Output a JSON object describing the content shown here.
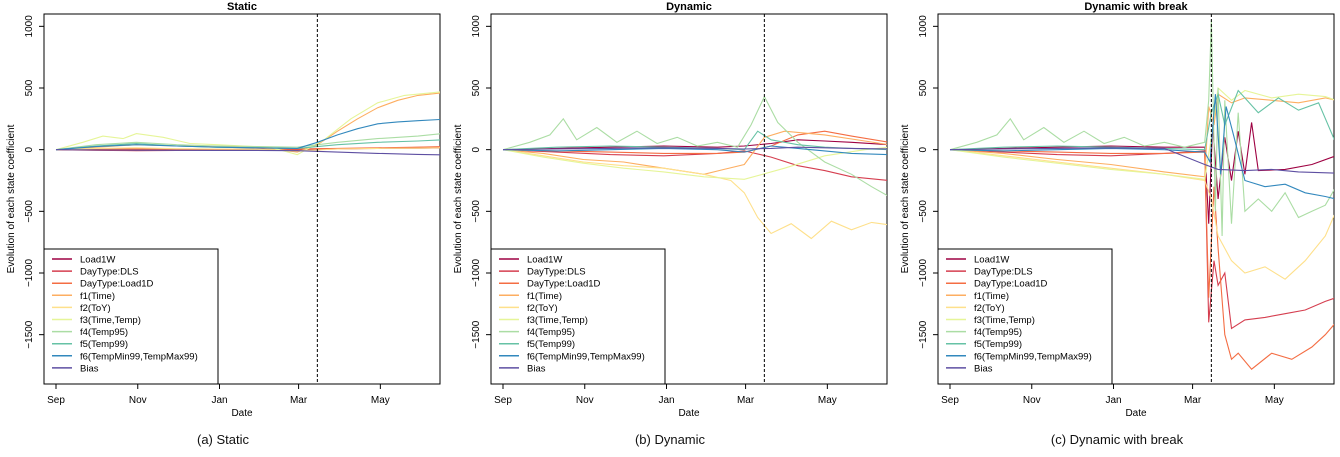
{
  "chart_data": [
    {
      "type": "line",
      "title": "Static",
      "caption": "(a) Static",
      "xlabel": "Date",
      "ylabel": "Evolution of each state coefficient",
      "x_ticks": [
        "Sep",
        "Nov",
        "Jan",
        "Mar",
        "May"
      ],
      "y_ticks": [
        "-1500",
        "-1000",
        "-500",
        "0",
        "500",
        "1000"
      ],
      "ylim": [
        -1900,
        1100
      ],
      "break_date": "Mar 15",
      "legend_position": "bottom-left",
      "series": [
        {
          "name": "Load1W",
          "color": "#9e0142",
          "x": [
            0,
            30,
            60,
            90,
            120,
            150,
            180,
            210,
            240,
            270,
            288
          ],
          "y": [
            0,
            2,
            3,
            4,
            2,
            3,
            5,
            8,
            10,
            12,
            14
          ]
        },
        {
          "name": "DayType:DLS",
          "color": "#d53e4f",
          "x": [
            0,
            30,
            60,
            90,
            120,
            150,
            180,
            210,
            240,
            270,
            288
          ],
          "y": [
            0,
            -5,
            -8,
            -6,
            -4,
            -3,
            -2,
            5,
            12,
            18,
            22
          ]
        },
        {
          "name": "DayType:Load1D",
          "color": "#f46d43",
          "x": [
            0,
            30,
            60,
            90,
            120,
            150,
            180,
            210,
            240,
            270,
            288
          ],
          "y": [
            0,
            3,
            5,
            4,
            2,
            3,
            5,
            10,
            15,
            20,
            25
          ]
        },
        {
          "name": "f1(Time)",
          "color": "#fdae61",
          "x": [
            0,
            30,
            60,
            90,
            120,
            150,
            180,
            195,
            210,
            225,
            240,
            255,
            270,
            288
          ],
          "y": [
            0,
            20,
            40,
            30,
            25,
            20,
            -20,
            40,
            150,
            250,
            340,
            400,
            440,
            460
          ]
        },
        {
          "name": "f2(ToY)",
          "color": "#fee08b",
          "x": [
            0,
            30,
            60,
            90,
            120,
            150,
            180,
            210,
            240,
            270,
            288
          ],
          "y": [
            0,
            10,
            15,
            8,
            5,
            3,
            -10,
            5,
            10,
            12,
            15
          ]
        },
        {
          "name": "f3(Time,Temp)",
          "color": "#e6f598",
          "x": [
            0,
            20,
            35,
            50,
            60,
            80,
            100,
            120,
            140,
            160,
            180,
            200,
            220,
            240,
            260,
            288
          ],
          "y": [
            0,
            60,
            110,
            90,
            130,
            100,
            50,
            40,
            30,
            20,
            -40,
            80,
            250,
            380,
            440,
            470
          ]
        },
        {
          "name": "f4(Temp95)",
          "color": "#abdda4",
          "x": [
            0,
            30,
            60,
            90,
            120,
            150,
            180,
            210,
            240,
            270,
            288
          ],
          "y": [
            0,
            40,
            60,
            40,
            30,
            25,
            20,
            60,
            90,
            110,
            130
          ]
        },
        {
          "name": "f5(Temp99)",
          "color": "#66c2a5",
          "x": [
            0,
            30,
            60,
            90,
            120,
            150,
            180,
            210,
            240,
            270,
            288
          ],
          "y": [
            0,
            30,
            50,
            30,
            20,
            15,
            10,
            40,
            60,
            70,
            80
          ]
        },
        {
          "name": "f6(TempMin99,TempMax99)",
          "color": "#3288bd",
          "x": [
            0,
            30,
            60,
            90,
            120,
            150,
            180,
            195,
            210,
            225,
            240,
            255,
            270,
            288
          ],
          "y": [
            0,
            25,
            40,
            30,
            20,
            15,
            10,
            60,
            120,
            170,
            210,
            225,
            235,
            245
          ]
        },
        {
          "name": "Bias",
          "color": "#5e4fa2",
          "x": [
            0,
            30,
            60,
            90,
            120,
            150,
            180,
            210,
            240,
            270,
            288
          ],
          "y": [
            0,
            -2,
            -4,
            -5,
            -6,
            -6,
            -8,
            -20,
            -30,
            -38,
            -42
          ]
        }
      ]
    },
    {
      "type": "line",
      "title": "Dynamic",
      "caption": "(b) Dynamic",
      "xlabel": "Date",
      "ylabel": "Evolution of each state coefficient",
      "x_ticks": [
        "Sep",
        "Nov",
        "Jan",
        "Mar",
        "May"
      ],
      "y_ticks": [
        "-1500",
        "-1000",
        "-500",
        "0",
        "500",
        "1000"
      ],
      "ylim": [
        -1900,
        1100
      ],
      "break_date": "Mar 15",
      "legend_position": "bottom-left",
      "series": [
        {
          "name": "Load1W",
          "color": "#9e0142",
          "x": [
            0,
            40,
            80,
            120,
            160,
            180,
            200,
            220,
            240,
            260,
            288
          ],
          "y": [
            0,
            10,
            20,
            30,
            20,
            30,
            50,
            80,
            70,
            60,
            40
          ]
        },
        {
          "name": "DayType:DLS",
          "color": "#d53e4f",
          "x": [
            0,
            40,
            80,
            120,
            160,
            180,
            200,
            220,
            240,
            260,
            288
          ],
          "y": [
            0,
            -20,
            -40,
            -50,
            -30,
            -10,
            -60,
            -130,
            -170,
            -220,
            -250
          ]
        },
        {
          "name": "DayType:Load1D",
          "color": "#f46d43",
          "x": [
            0,
            40,
            80,
            120,
            160,
            180,
            200,
            220,
            240,
            260,
            288
          ],
          "y": [
            0,
            -10,
            -20,
            -30,
            -30,
            -20,
            30,
            120,
            150,
            110,
            60
          ]
        },
        {
          "name": "f1(Time)",
          "color": "#fdae61",
          "x": [
            0,
            30,
            60,
            90,
            120,
            150,
            165,
            180,
            195,
            210,
            240,
            270,
            288
          ],
          "y": [
            0,
            -30,
            -80,
            -100,
            -150,
            -200,
            -160,
            -120,
            100,
            150,
            120,
            70,
            40
          ]
        },
        {
          "name": "f2(ToY)",
          "color": "#fee08b",
          "x": [
            0,
            30,
            60,
            90,
            120,
            150,
            170,
            180,
            190,
            200,
            215,
            230,
            245,
            260,
            275,
            288
          ],
          "y": [
            0,
            -50,
            -100,
            -130,
            -150,
            -200,
            -250,
            -350,
            -550,
            -680,
            -600,
            -720,
            -580,
            -650,
            -590,
            -610
          ]
        },
        {
          "name": "f3(Time,Temp)",
          "color": "#e6f598",
          "x": [
            0,
            30,
            60,
            90,
            120,
            150,
            180,
            210,
            240,
            270,
            288
          ],
          "y": [
            0,
            -60,
            -110,
            -150,
            -180,
            -220,
            -240,
            -150,
            -50,
            0,
            20
          ]
        },
        {
          "name": "f4(Temp95)",
          "color": "#abdda4",
          "x": [
            0,
            20,
            35,
            45,
            55,
            70,
            85,
            100,
            115,
            130,
            145,
            160,
            175,
            185,
            195,
            205,
            220,
            240,
            260,
            275,
            288
          ],
          "y": [
            0,
            60,
            120,
            250,
            80,
            180,
            60,
            150,
            50,
            100,
            30,
            60,
            20,
            200,
            430,
            220,
            60,
            -100,
            -200,
            -300,
            -380
          ]
        },
        {
          "name": "f5(Temp99)",
          "color": "#66c2a5",
          "x": [
            0,
            40,
            80,
            120,
            160,
            180,
            190,
            200,
            220,
            240,
            260,
            288
          ],
          "y": [
            0,
            20,
            30,
            20,
            10,
            0,
            150,
            80,
            40,
            20,
            10,
            0
          ]
        },
        {
          "name": "f6(TempMin99,TempMax99)",
          "color": "#3288bd",
          "x": [
            0,
            40,
            80,
            120,
            160,
            180,
            200,
            220,
            240,
            260,
            288
          ],
          "y": [
            0,
            -10,
            0,
            10,
            0,
            -20,
            30,
            10,
            -10,
            -30,
            -40
          ]
        },
        {
          "name": "Bias",
          "color": "#5e4fa2",
          "x": [
            0,
            40,
            80,
            120,
            160,
            180,
            200,
            220,
            240,
            260,
            288
          ],
          "y": [
            0,
            5,
            10,
            15,
            10,
            5,
            10,
            20,
            15,
            10,
            5
          ]
        }
      ]
    },
    {
      "type": "line",
      "title": "Dynamic with break",
      "caption": "(c) Dynamic with break",
      "xlabel": "Date",
      "ylabel": "Evolution of each state coefficient",
      "x_ticks": [
        "Sep",
        "Nov",
        "Jan",
        "Mar",
        "May"
      ],
      "y_ticks": [
        "-1500",
        "-1000",
        "-500",
        "0",
        "500",
        "1000"
      ],
      "ylim": [
        -1900,
        1100
      ],
      "break_date": "Mar 15",
      "legend_position": "bottom-left",
      "series": [
        {
          "name": "Load1W",
          "color": "#9e0142",
          "x": [
            0,
            40,
            80,
            120,
            160,
            190,
            193,
            196,
            200,
            205,
            210,
            215,
            220,
            225,
            230,
            250,
            270,
            288
          ],
          "y": [
            0,
            10,
            20,
            30,
            20,
            20,
            -600,
            200,
            -400,
            100,
            -250,
            150,
            -200,
            220,
            -170,
            -160,
            -120,
            -50
          ]
        },
        {
          "name": "DayType:DLS",
          "color": "#d53e4f",
          "x": [
            0,
            40,
            80,
            120,
            160,
            190,
            193,
            197,
            200,
            205,
            210,
            220,
            235,
            250,
            265,
            280,
            288
          ],
          "y": [
            0,
            -20,
            -40,
            -50,
            -30,
            -10,
            -1400,
            -900,
            -1100,
            -1000,
            -1450,
            -1380,
            -1360,
            -1330,
            -1300,
            -1230,
            -1200
          ]
        },
        {
          "name": "DayType:Load1D",
          "color": "#f46d43",
          "x": [
            0,
            40,
            80,
            120,
            160,
            190,
            193,
            197,
            200,
            205,
            210,
            215,
            225,
            240,
            255,
            270,
            280,
            288
          ],
          "y": [
            0,
            -10,
            -20,
            -30,
            -30,
            -20,
            -1200,
            -300,
            -800,
            -1500,
            -1700,
            -1650,
            -1780,
            -1650,
            -1700,
            -1600,
            -1500,
            -1400
          ]
        },
        {
          "name": "f1(Time)",
          "color": "#fdae61",
          "x": [
            0,
            40,
            80,
            120,
            160,
            190,
            193,
            197,
            200,
            210,
            220,
            240,
            260,
            280,
            288
          ],
          "y": [
            0,
            -30,
            -80,
            -120,
            -180,
            -220,
            350,
            200,
            450,
            380,
            420,
            400,
            380,
            420,
            400
          ]
        },
        {
          "name": "f2(ToY)",
          "color": "#fee08b",
          "x": [
            0,
            40,
            80,
            120,
            160,
            190,
            195,
            200,
            210,
            220,
            235,
            250,
            265,
            280,
            288
          ],
          "y": [
            0,
            -50,
            -100,
            -150,
            -200,
            -250,
            -400,
            -700,
            -900,
            -1000,
            -950,
            -1050,
            -900,
            -700,
            -500
          ]
        },
        {
          "name": "f3(Time,Temp)",
          "color": "#e6f598",
          "x": [
            0,
            40,
            80,
            120,
            160,
            190,
            195,
            200,
            210,
            220,
            240,
            260,
            280,
            288
          ],
          "y": [
            0,
            -60,
            -110,
            -160,
            -200,
            -240,
            100,
            500,
            400,
            480,
            420,
            450,
            430,
            400
          ]
        },
        {
          "name": "f4(Temp95)",
          "color": "#abdda4",
          "x": [
            0,
            20,
            35,
            45,
            55,
            70,
            85,
            100,
            115,
            130,
            145,
            160,
            175,
            190,
            193,
            195,
            198,
            200,
            203,
            205,
            210,
            215,
            220,
            230,
            240,
            250,
            260,
            270,
            280,
            288
          ],
          "y": [
            0,
            60,
            120,
            250,
            80,
            180,
            60,
            150,
            50,
            100,
            30,
            60,
            20,
            60,
            400,
            1050,
            -500,
            500,
            -700,
            400,
            -600,
            300,
            -500,
            -400,
            -500,
            -350,
            -550,
            -500,
            -450,
            -300
          ]
        },
        {
          "name": "f5(Temp99)",
          "color": "#66c2a5",
          "x": [
            0,
            40,
            80,
            120,
            160,
            190,
            195,
            200,
            205,
            215,
            230,
            245,
            260,
            275,
            288
          ],
          "y": [
            0,
            20,
            30,
            20,
            10,
            0,
            300,
            450,
            200,
            480,
            300,
            420,
            320,
            380,
            50
          ]
        },
        {
          "name": "f6(TempMin99,TempMax99)",
          "color": "#3288bd",
          "x": [
            0,
            40,
            80,
            120,
            160,
            190,
            194,
            198,
            202,
            206,
            212,
            220,
            235,
            250,
            265,
            280,
            288
          ],
          "y": [
            0,
            -10,
            0,
            10,
            0,
            -20,
            -100,
            450,
            -200,
            350,
            100,
            -250,
            -300,
            -280,
            -350,
            -380,
            -400
          ]
        },
        {
          "name": "Bias",
          "color": "#5e4fa2",
          "x": [
            0,
            40,
            80,
            120,
            160,
            190,
            200,
            220,
            240,
            260,
            288
          ],
          "y": [
            0,
            5,
            10,
            15,
            10,
            -120,
            -160,
            -170,
            -160,
            -180,
            -190
          ]
        }
      ]
    }
  ]
}
